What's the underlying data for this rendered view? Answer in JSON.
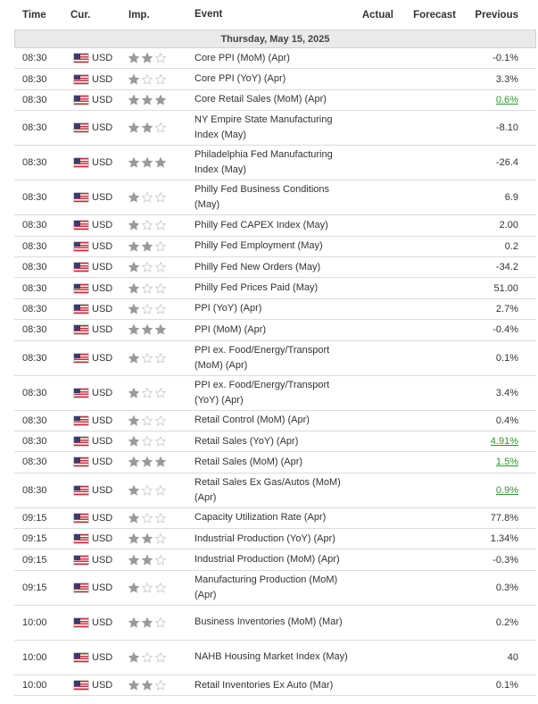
{
  "headers": {
    "time": "Time",
    "currency": "Cur.",
    "importance": "Imp.",
    "event": "Event",
    "actual": "Actual",
    "forecast": "Forecast",
    "previous": "Previous"
  },
  "date_label": "Thursday, May 15, 2025",
  "colors": {
    "star_filled": "#9a9a9a",
    "star_empty": "#c8c8c8",
    "positive_green": "#2b9a2b",
    "date_row_bg": "#eaeaea"
  },
  "rows": [
    {
      "time": "08:30",
      "currency": "USD",
      "stars": 2,
      "event": "Core PPI (MoM) (Apr)",
      "actual": "",
      "forecast": "",
      "previous": "-0.1%",
      "previous_green": false
    },
    {
      "time": "08:30",
      "currency": "USD",
      "stars": 1,
      "event": "Core PPI (YoY) (Apr)",
      "actual": "",
      "forecast": "",
      "previous": "3.3%",
      "previous_green": false
    },
    {
      "time": "08:30",
      "currency": "USD",
      "stars": 3,
      "event": "Core Retail Sales (MoM) (Apr)",
      "actual": "",
      "forecast": "",
      "previous": "0.6%",
      "previous_green": true
    },
    {
      "time": "08:30",
      "currency": "USD",
      "stars": 2,
      "event": "NY Empire State Manufacturing Index (May)",
      "actual": "",
      "forecast": "",
      "previous": "-8.10",
      "previous_green": false
    },
    {
      "time": "08:30",
      "currency": "USD",
      "stars": 3,
      "event": "Philadelphia Fed Manufacturing Index (May)",
      "actual": "",
      "forecast": "",
      "previous": "-26.4",
      "previous_green": false
    },
    {
      "time": "08:30",
      "currency": "USD",
      "stars": 1,
      "event": "Philly Fed Business Conditions (May)",
      "actual": "",
      "forecast": "",
      "previous": "6.9",
      "previous_green": false
    },
    {
      "time": "08:30",
      "currency": "USD",
      "stars": 1,
      "event": "Philly Fed CAPEX Index (May)",
      "actual": "",
      "forecast": "",
      "previous": "2.00",
      "previous_green": false
    },
    {
      "time": "08:30",
      "currency": "USD",
      "stars": 2,
      "event": "Philly Fed Employment (May)",
      "actual": "",
      "forecast": "",
      "previous": "0.2",
      "previous_green": false
    },
    {
      "time": "08:30",
      "currency": "USD",
      "stars": 1,
      "event": "Philly Fed New Orders (May)",
      "actual": "",
      "forecast": "",
      "previous": "-34.2",
      "previous_green": false
    },
    {
      "time": "08:30",
      "currency": "USD",
      "stars": 1,
      "event": "Philly Fed Prices Paid (May)",
      "actual": "",
      "forecast": "",
      "previous": "51.00",
      "previous_green": false
    },
    {
      "time": "08:30",
      "currency": "USD",
      "stars": 1,
      "event": "PPI (YoY) (Apr)",
      "actual": "",
      "forecast": "",
      "previous": "2.7%",
      "previous_green": false
    },
    {
      "time": "08:30",
      "currency": "USD",
      "stars": 3,
      "event": "PPI (MoM) (Apr)",
      "actual": "",
      "forecast": "",
      "previous": "-0.4%",
      "previous_green": false
    },
    {
      "time": "08:30",
      "currency": "USD",
      "stars": 1,
      "event": "PPI ex. Food/Energy/Transport (MoM) (Apr)",
      "actual": "",
      "forecast": "",
      "previous": "0.1%",
      "previous_green": false
    },
    {
      "time": "08:30",
      "currency": "USD",
      "stars": 1,
      "event": "PPI ex. Food/Energy/Transport (YoY) (Apr)",
      "actual": "",
      "forecast": "",
      "previous": "3.4%",
      "previous_green": false
    },
    {
      "time": "08:30",
      "currency": "USD",
      "stars": 1,
      "event": "Retail Control (MoM) (Apr)",
      "actual": "",
      "forecast": "",
      "previous": "0.4%",
      "previous_green": false
    },
    {
      "time": "08:30",
      "currency": "USD",
      "stars": 1,
      "event": "Retail Sales (YoY) (Apr)",
      "actual": "",
      "forecast": "",
      "previous": "4.91%",
      "previous_green": true
    },
    {
      "time": "08:30",
      "currency": "USD",
      "stars": 3,
      "event": "Retail Sales (MoM) (Apr)",
      "actual": "",
      "forecast": "",
      "previous": "1.5%",
      "previous_green": true
    },
    {
      "time": "08:30",
      "currency": "USD",
      "stars": 1,
      "event": "Retail Sales Ex Gas/Autos (MoM) (Apr)",
      "actual": "",
      "forecast": "",
      "previous": "0.9%",
      "previous_green": true
    },
    {
      "time": "09:15",
      "currency": "USD",
      "stars": 1,
      "event": "Capacity Utilization Rate (Apr)",
      "actual": "",
      "forecast": "",
      "previous": "77.8%",
      "previous_green": false
    },
    {
      "time": "09:15",
      "currency": "USD",
      "stars": 2,
      "event": "Industrial Production (YoY) (Apr)",
      "actual": "",
      "forecast": "",
      "previous": "1.34%",
      "previous_green": false
    },
    {
      "time": "09:15",
      "currency": "USD",
      "stars": 2,
      "event": "Industrial Production (MoM) (Apr)",
      "actual": "",
      "forecast": "",
      "previous": "-0.3%",
      "previous_green": false
    },
    {
      "time": "09:15",
      "currency": "USD",
      "stars": 1,
      "event": "Manufacturing Production (MoM) (Apr)",
      "actual": "",
      "forecast": "",
      "previous": "0.3%",
      "previous_green": false
    },
    {
      "time": "10:00",
      "currency": "USD",
      "stars": 2,
      "event": "Business Inventories (MoM) (Mar)",
      "actual": "",
      "forecast": "",
      "previous": "0.2%",
      "previous_green": false
    },
    {
      "time": "10:00",
      "currency": "USD",
      "stars": 1,
      "event": "NAHB Housing Market Index (May)",
      "actual": "",
      "forecast": "",
      "previous": "40",
      "previous_green": false
    },
    {
      "time": "10:00",
      "currency": "USD",
      "stars": 2,
      "event": "Retail Inventories Ex Auto (Mar)",
      "actual": "",
      "forecast": "",
      "previous": "0.1%",
      "previous_green": false
    }
  ]
}
